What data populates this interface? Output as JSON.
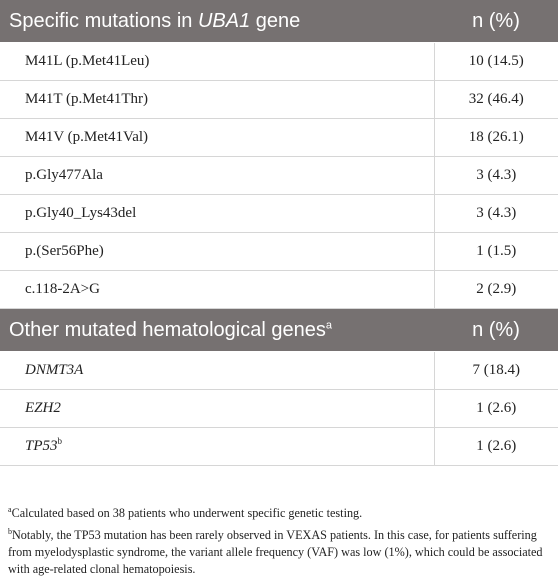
{
  "section1": {
    "header_prefix": "Specific mutations in ",
    "header_gene": "UBA1",
    "header_suffix": " gene",
    "header_n": "n (%)",
    "rows": [
      {
        "label": "M41L (p.Met41Leu)",
        "value": "10 (14.5)"
      },
      {
        "label": "M41T (p.Met41Thr)",
        "value": "32 (46.4)"
      },
      {
        "label": "M41V (p.Met41Val)",
        "value": "18 (26.1)"
      },
      {
        "label": "p.Gly477Ala",
        "value": "3 (4.3)"
      },
      {
        "label": "p.Gly40_Lys43del",
        "value": "3 (4.3)"
      },
      {
        "label": "p.(Ser56Phe)",
        "value": "1 (1.5)"
      },
      {
        "label": "c.118-2A>G",
        "value": "2 (2.9)"
      }
    ]
  },
  "section2": {
    "header": "Other mutated hematological genes",
    "header_sup": "a",
    "header_n": "n (%)",
    "rows": [
      {
        "label": "DNMT3A",
        "sup": "",
        "value": "7 (18.4)"
      },
      {
        "label": "EZH2",
        "sup": "",
        "value": "1 (2.6)"
      },
      {
        "label": "TP53",
        "sup": "b",
        "value": "1 (2.6)"
      }
    ]
  },
  "footnotes": {
    "a_mark": "a",
    "a_text": "Calculated based on 38 patients who underwent specific genetic testing.",
    "b_mark": "b",
    "b_text": "Notably, the TP53 mutation has been rarely observed in VEXAS patients. In this case, for patients suffering from myelodysplastic syndrome, the variant allele frequency (VAF) was low (1%), which could be associated with age-related clonal hematopoiesis."
  }
}
